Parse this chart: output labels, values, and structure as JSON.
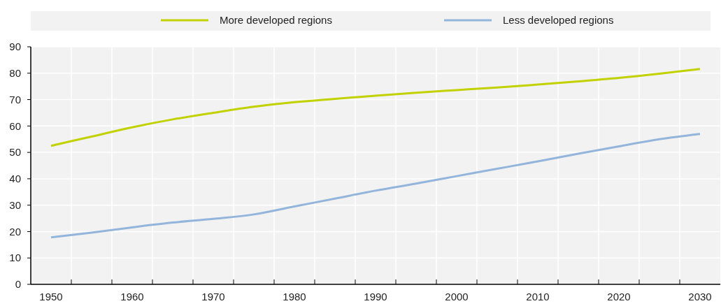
{
  "chart_data": {
    "type": "line",
    "categories": [
      "1950",
      null,
      "1960",
      null,
      "1970",
      null,
      "1980",
      null,
      "1990",
      null,
      "2000",
      null,
      "2010",
      null,
      "2020",
      null,
      "2030"
    ],
    "series": [
      {
        "name": "More developed regions",
        "color": "#c2d100",
        "values": [
          52.5,
          56,
          59.5,
          62.5,
          65,
          67.3,
          69,
          70.3,
          71.5,
          72.6,
          73.6,
          74.6,
          75.7,
          76.9,
          78.2,
          79.8,
          81.6
        ]
      },
      {
        "name": "Less developed regions",
        "color": "#93b5dc",
        "values": [
          17.8,
          19.6,
          21.6,
          23.4,
          24.8,
          26.5,
          29.5,
          32.5,
          35.5,
          38.2,
          41,
          43.8,
          46.6,
          49.5,
          52.3,
          55,
          57
        ]
      }
    ],
    "ylim": [
      0,
      90
    ],
    "yticks": [
      0,
      10,
      20,
      30,
      40,
      50,
      60,
      70,
      80,
      90
    ],
    "grid": true,
    "legend": "top"
  }
}
